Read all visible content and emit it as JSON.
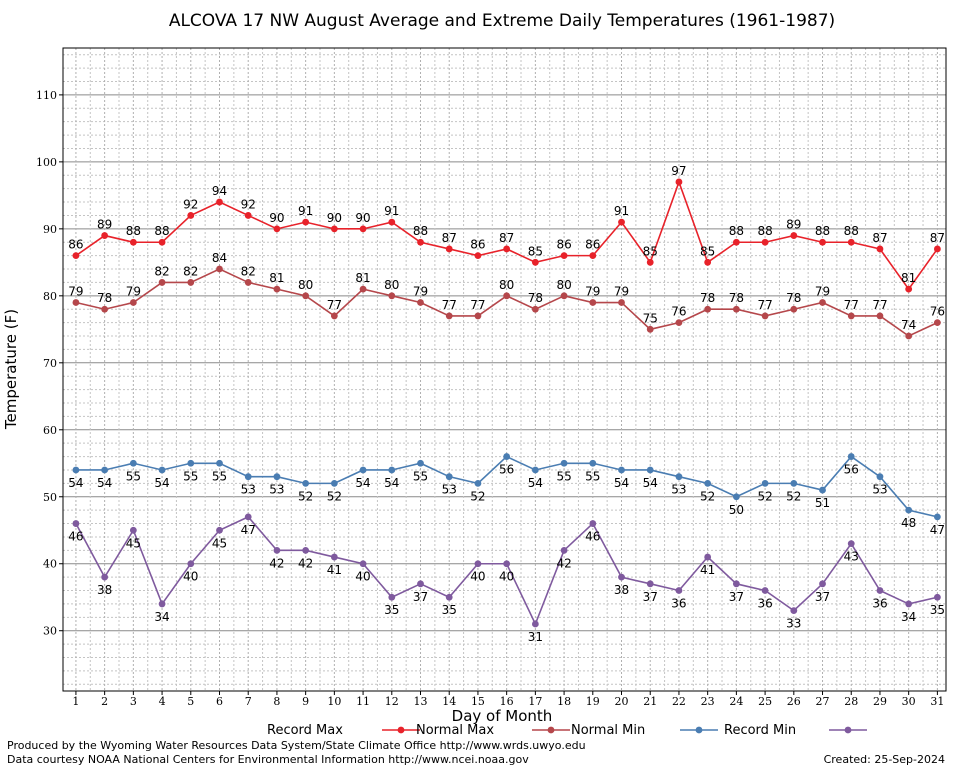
{
  "chart_data": {
    "type": "line",
    "title": "ALCOVA 17 NW August Average and Extreme Daily Temperatures (1961-1987)",
    "xlabel": "Day of Month",
    "ylabel": "Temperature (F)",
    "x": [
      1,
      2,
      3,
      4,
      5,
      6,
      7,
      8,
      9,
      10,
      11,
      12,
      13,
      14,
      15,
      16,
      17,
      18,
      19,
      20,
      21,
      22,
      23,
      24,
      25,
      26,
      27,
      28,
      29,
      30,
      31
    ],
    "xlim": [
      0.55,
      31.3
    ],
    "ylim": [
      21,
      117
    ],
    "yticks": [
      30,
      40,
      50,
      60,
      70,
      80,
      90,
      100,
      110
    ],
    "grid": true,
    "series": [
      {
        "name": "Record Max",
        "color": "#e8222a",
        "label_position": "above",
        "values": [
          86,
          89,
          88,
          88,
          92,
          94,
          92,
          90,
          91,
          90,
          90,
          91,
          88,
          87,
          86,
          87,
          85,
          86,
          86,
          91,
          85,
          97,
          85,
          88,
          88,
          89,
          88,
          88,
          87,
          81,
          87
        ]
      },
      {
        "name": "Normal Max",
        "color": "#b5474b",
        "label_position": "above",
        "values": [
          79,
          78,
          79,
          82,
          82,
          84,
          82,
          81,
          80,
          77,
          81,
          80,
          79,
          77,
          77,
          80,
          78,
          80,
          79,
          79,
          75,
          76,
          78,
          78,
          77,
          78,
          79,
          77,
          77,
          74,
          76
        ]
      },
      {
        "name": "Normal Min",
        "color": "#4a7db2",
        "label_position": "below",
        "values": [
          54,
          54,
          55,
          54,
          55,
          55,
          53,
          53,
          52,
          52,
          54,
          54,
          55,
          53,
          52,
          56,
          54,
          55,
          55,
          54,
          54,
          53,
          52,
          50,
          52,
          52,
          51,
          56,
          53,
          48,
          47
        ]
      },
      {
        "name": "Record Min",
        "color": "#7f5a9e",
        "label_position": "below",
        "values": [
          46,
          38,
          45,
          34,
          40,
          45,
          47,
          42,
          42,
          41,
          40,
          35,
          37,
          35,
          40,
          40,
          31,
          42,
          46,
          38,
          37,
          36,
          41,
          37,
          36,
          33,
          37,
          43,
          36,
          34,
          35
        ]
      }
    ]
  },
  "footer": {
    "produced_by": "Produced by the Wyoming Water Resources Data System/State Climate Office http://www.wrds.uwyo.edu",
    "courtesy": "Data courtesy NOAA National Centers for Environmental Information http://www.ncei.noaa.gov",
    "created": "Created:  25-Sep-2024"
  }
}
